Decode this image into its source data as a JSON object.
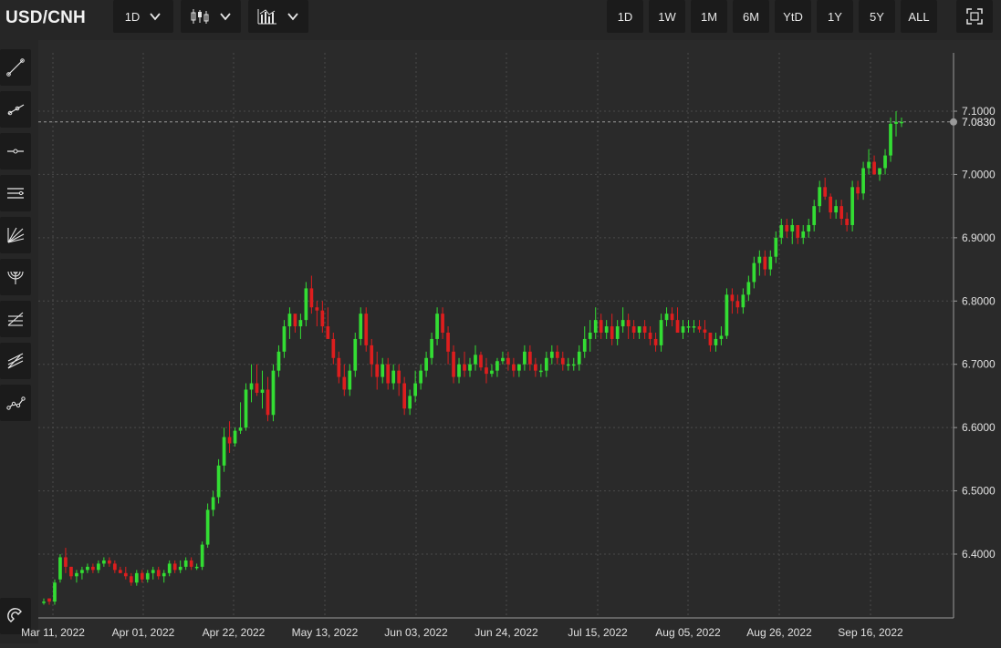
{
  "toolbar": {
    "symbol": "USD/CNH",
    "interval": "1D",
    "chart_style_icon": "candlestick-icon",
    "indicators_icon": "bar-chart-icon",
    "ranges": [
      "1D",
      "1W",
      "1M",
      "6M",
      "YtD",
      "1Y",
      "5Y",
      "ALL"
    ],
    "fullscreen_icon": "fullscreen-icon"
  },
  "sidebar": {
    "tools": [
      "trend-line-icon",
      "ray-icon",
      "horizontal-line-icon",
      "parallel-channel-icon",
      "fan-icon",
      "arc-icon",
      "fib-retracement-icon",
      "fib-extension-icon",
      "polyline-icon"
    ],
    "bottom_tool": "magnet-icon"
  },
  "colors": {
    "up": "#33dd33",
    "down": "#dd1e1e",
    "grid": "#4a4a4a",
    "axis_text": "#e0e0e0",
    "background": "#2a2a2a"
  },
  "chart_data": {
    "type": "candlestick",
    "title": "",
    "xlabel": "",
    "ylabel": "",
    "ylim": [
      6.3,
      7.2
    ],
    "y_ticks": [
      "6.4000",
      "6.5000",
      "6.6000",
      "6.7000",
      "6.8000",
      "6.9000",
      "7.0000",
      "7.1000"
    ],
    "last_price": "7.0830",
    "x_tick_labels": [
      "Mar 11, 2022",
      "Apr 01, 2022",
      "Apr 22, 2022",
      "May 13, 2022",
      "Jun 03, 2022",
      "Jun 24, 2022",
      "Jul 15, 2022",
      "Aug 05, 2022",
      "Aug 26, 2022",
      "Sep 16, 2022"
    ],
    "series": [
      {
        "values": [
          [
            6.325,
            6.33,
            6.32,
            6.325
          ],
          [
            6.33,
            6.33,
            6.32,
            6.325
          ],
          [
            6.325,
            6.36,
            6.32,
            6.355
          ],
          [
            6.36,
            6.4,
            6.355,
            6.395
          ],
          [
            6.395,
            6.41,
            6.37,
            6.38
          ],
          [
            6.38,
            6.38,
            6.36,
            6.365
          ],
          [
            6.365,
            6.375,
            6.355,
            6.37
          ],
          [
            6.37,
            6.38,
            6.36,
            6.375
          ],
          [
            6.375,
            6.385,
            6.37,
            6.38
          ],
          [
            6.38,
            6.385,
            6.37,
            6.375
          ],
          [
            6.375,
            6.39,
            6.37,
            6.385
          ],
          [
            6.385,
            6.395,
            6.38,
            6.39
          ],
          [
            6.39,
            6.395,
            6.38,
            6.385
          ],
          [
            6.385,
            6.39,
            6.37,
            6.375
          ],
          [
            6.375,
            6.38,
            6.37,
            6.37
          ],
          [
            6.37,
            6.38,
            6.36,
            6.365
          ],
          [
            6.365,
            6.37,
            6.35,
            6.355
          ],
          [
            6.355,
            6.375,
            6.35,
            6.37
          ],
          [
            6.37,
            6.375,
            6.355,
            6.36
          ],
          [
            6.36,
            6.375,
            6.355,
            6.37
          ],
          [
            6.37,
            6.38,
            6.36,
            6.375
          ],
          [
            6.375,
            6.38,
            6.36,
            6.365
          ],
          [
            6.365,
            6.375,
            6.355,
            6.37
          ],
          [
            6.37,
            6.39,
            6.365,
            6.385
          ],
          [
            6.385,
            6.39,
            6.37,
            6.375
          ],
          [
            6.375,
            6.39,
            6.37,
            6.38
          ],
          [
            6.38,
            6.395,
            6.375,
            6.39
          ],
          [
            6.39,
            6.395,
            6.375,
            6.38
          ],
          [
            6.38,
            6.385,
            6.375,
            6.38
          ],
          [
            6.38,
            6.42,
            6.375,
            6.415
          ],
          [
            6.415,
            6.48,
            6.41,
            6.47
          ],
          [
            6.47,
            6.5,
            6.46,
            6.49
          ],
          [
            6.49,
            6.55,
            6.48,
            6.54
          ],
          [
            6.54,
            6.6,
            6.53,
            6.585
          ],
          [
            6.585,
            6.61,
            6.56,
            6.575
          ],
          [
            6.575,
            6.6,
            6.57,
            6.595
          ],
          [
            6.595,
            6.64,
            6.59,
            6.6
          ],
          [
            6.6,
            6.67,
            6.595,
            6.66
          ],
          [
            6.66,
            6.7,
            6.64,
            6.67
          ],
          [
            6.67,
            6.7,
            6.65,
            6.655
          ],
          [
            6.655,
            6.69,
            6.63,
            6.66
          ],
          [
            6.66,
            6.68,
            6.61,
            6.62
          ],
          [
            6.62,
            6.7,
            6.61,
            6.69
          ],
          [
            6.69,
            6.73,
            6.68,
            6.72
          ],
          [
            6.72,
            6.77,
            6.71,
            6.76
          ],
          [
            6.76,
            6.79,
            6.74,
            6.78
          ],
          [
            6.78,
            6.77,
            6.75,
            6.76
          ],
          [
            6.76,
            6.78,
            6.74,
            6.77
          ],
          [
            6.77,
            6.83,
            6.76,
            6.82
          ],
          [
            6.82,
            6.84,
            6.78,
            6.79
          ],
          [
            6.79,
            6.8,
            6.76,
            6.785
          ],
          [
            6.785,
            6.8,
            6.75,
            6.76
          ],
          [
            6.76,
            6.79,
            6.74,
            6.74
          ],
          [
            6.74,
            6.75,
            6.7,
            6.71
          ],
          [
            6.71,
            6.72,
            6.67,
            6.68
          ],
          [
            6.68,
            6.7,
            6.65,
            6.66
          ],
          [
            6.66,
            6.7,
            6.65,
            6.69
          ],
          [
            6.69,
            6.75,
            6.68,
            6.74
          ],
          [
            6.74,
            6.79,
            6.73,
            6.78
          ],
          [
            6.78,
            6.79,
            6.72,
            6.73
          ],
          [
            6.73,
            6.74,
            6.68,
            6.7
          ],
          [
            6.7,
            6.72,
            6.66,
            6.68
          ],
          [
            6.68,
            6.71,
            6.67,
            6.7
          ],
          [
            6.7,
            6.71,
            6.66,
            6.67
          ],
          [
            6.67,
            6.7,
            6.66,
            6.69
          ],
          [
            6.69,
            6.7,
            6.65,
            6.67
          ],
          [
            6.67,
            6.68,
            6.62,
            6.63
          ],
          [
            6.63,
            6.66,
            6.62,
            6.65
          ],
          [
            6.65,
            6.69,
            6.64,
            6.67
          ],
          [
            6.67,
            6.7,
            6.66,
            6.69
          ],
          [
            6.69,
            6.72,
            6.68,
            6.71
          ],
          [
            6.71,
            6.75,
            6.7,
            6.74
          ],
          [
            6.74,
            6.79,
            6.73,
            6.78
          ],
          [
            6.78,
            6.79,
            6.74,
            6.75
          ],
          [
            6.75,
            6.76,
            6.7,
            6.72
          ],
          [
            6.72,
            6.73,
            6.67,
            6.68
          ],
          [
            6.68,
            6.71,
            6.67,
            6.7
          ],
          [
            6.7,
            6.72,
            6.68,
            6.69
          ],
          [
            6.69,
            6.71,
            6.68,
            6.7
          ],
          [
            6.7,
            6.73,
            6.69,
            6.715
          ],
          [
            6.715,
            6.72,
            6.69,
            6.695
          ],
          [
            6.695,
            6.71,
            6.67,
            6.685
          ],
          [
            6.685,
            6.7,
            6.68,
            6.69
          ],
          [
            6.69,
            6.71,
            6.68,
            6.705
          ],
          [
            6.705,
            6.72,
            6.7,
            6.71
          ],
          [
            6.71,
            6.72,
            6.69,
            6.7
          ],
          [
            6.7,
            6.71,
            6.68,
            6.69
          ],
          [
            6.69,
            6.7,
            6.68,
            6.7
          ],
          [
            6.7,
            6.73,
            6.69,
            6.72
          ],
          [
            6.72,
            6.73,
            6.69,
            6.7
          ],
          [
            6.7,
            6.71,
            6.68,
            6.69
          ],
          [
            6.69,
            6.7,
            6.68,
            6.69
          ],
          [
            6.69,
            6.72,
            6.68,
            6.71
          ],
          [
            6.71,
            6.73,
            6.7,
            6.72
          ],
          [
            6.72,
            6.73,
            6.7,
            6.71
          ],
          [
            6.71,
            6.72,
            6.69,
            6.7
          ],
          [
            6.7,
            6.71,
            6.69,
            6.7
          ],
          [
            6.7,
            6.71,
            6.69,
            6.7
          ],
          [
            6.7,
            6.73,
            6.69,
            6.72
          ],
          [
            6.72,
            6.76,
            6.71,
            6.74
          ],
          [
            6.74,
            6.77,
            6.72,
            6.75
          ],
          [
            6.75,
            6.79,
            6.74,
            6.77
          ],
          [
            6.77,
            6.78,
            6.74,
            6.75
          ],
          [
            6.75,
            6.77,
            6.74,
            6.76
          ],
          [
            6.76,
            6.78,
            6.73,
            6.74
          ],
          [
            6.74,
            6.77,
            6.73,
            6.76
          ],
          [
            6.76,
            6.79,
            6.75,
            6.77
          ],
          [
            6.77,
            6.78,
            6.74,
            6.76
          ],
          [
            6.76,
            6.77,
            6.74,
            6.75
          ],
          [
            6.75,
            6.76,
            6.74,
            6.76
          ],
          [
            6.76,
            6.77,
            6.74,
            6.75
          ],
          [
            6.75,
            6.76,
            6.73,
            6.74
          ],
          [
            6.74,
            6.75,
            6.72,
            6.73
          ],
          [
            6.73,
            6.78,
            6.72,
            6.77
          ],
          [
            6.77,
            6.79,
            6.76,
            6.78
          ],
          [
            6.78,
            6.79,
            6.76,
            6.77
          ],
          [
            6.77,
            6.79,
            6.75,
            6.75
          ],
          [
            6.75,
            6.77,
            6.74,
            6.76
          ],
          [
            6.76,
            6.77,
            6.75,
            6.76
          ],
          [
            6.76,
            6.77,
            6.75,
            6.76
          ],
          [
            6.76,
            6.77,
            6.75,
            6.755
          ],
          [
            6.755,
            6.77,
            6.74,
            6.75
          ],
          [
            6.75,
            6.75,
            6.72,
            6.73
          ],
          [
            6.73,
            6.75,
            6.72,
            6.74
          ],
          [
            6.74,
            6.76,
            6.73,
            6.745
          ],
          [
            6.745,
            6.82,
            6.74,
            6.81
          ],
          [
            6.81,
            6.82,
            6.78,
            6.8
          ],
          [
            6.8,
            6.81,
            6.78,
            6.79
          ],
          [
            6.79,
            6.82,
            6.78,
            6.81
          ],
          [
            6.81,
            6.84,
            6.8,
            6.83
          ],
          [
            6.83,
            6.87,
            6.82,
            6.86
          ],
          [
            6.86,
            6.88,
            6.84,
            6.87
          ],
          [
            6.87,
            6.88,
            6.84,
            6.85
          ],
          [
            6.85,
            6.88,
            6.84,
            6.87
          ],
          [
            6.87,
            6.91,
            6.86,
            6.9
          ],
          [
            6.9,
            6.93,
            6.89,
            6.92
          ],
          [
            6.92,
            6.93,
            6.9,
            6.91
          ],
          [
            6.91,
            6.93,
            6.89,
            6.92
          ],
          [
            6.92,
            6.92,
            6.89,
            6.9
          ],
          [
            6.9,
            6.92,
            6.89,
            6.91
          ],
          [
            6.91,
            6.93,
            6.9,
            6.92
          ],
          [
            6.92,
            6.96,
            6.91,
            6.95
          ],
          [
            6.95,
            6.99,
            6.94,
            6.98
          ],
          [
            6.98,
            6.995,
            6.96,
            6.965
          ],
          [
            6.965,
            6.97,
            6.93,
            6.94
          ],
          [
            6.94,
            6.96,
            6.93,
            6.95
          ],
          [
            6.95,
            6.96,
            6.92,
            6.93
          ],
          [
            6.93,
            6.94,
            6.91,
            6.92
          ],
          [
            6.92,
            6.99,
            6.91,
            6.98
          ],
          [
            6.98,
            6.99,
            6.96,
            6.97
          ],
          [
            6.97,
            7.02,
            6.96,
            7.01
          ],
          [
            7.01,
            7.04,
            7.0,
            7.02
          ],
          [
            7.02,
            7.03,
            7.0,
            7.0
          ],
          [
            7.0,
            7.01,
            6.99,
            7.01
          ],
          [
            7.01,
            7.04,
            7.0,
            7.03
          ],
          [
            7.03,
            7.09,
            7.02,
            7.08
          ],
          [
            7.08,
            7.1,
            7.06,
            7.083
          ],
          [
            7.083,
            7.09,
            7.075,
            7.083
          ]
        ]
      }
    ],
    "grid": true,
    "legend": "none"
  }
}
